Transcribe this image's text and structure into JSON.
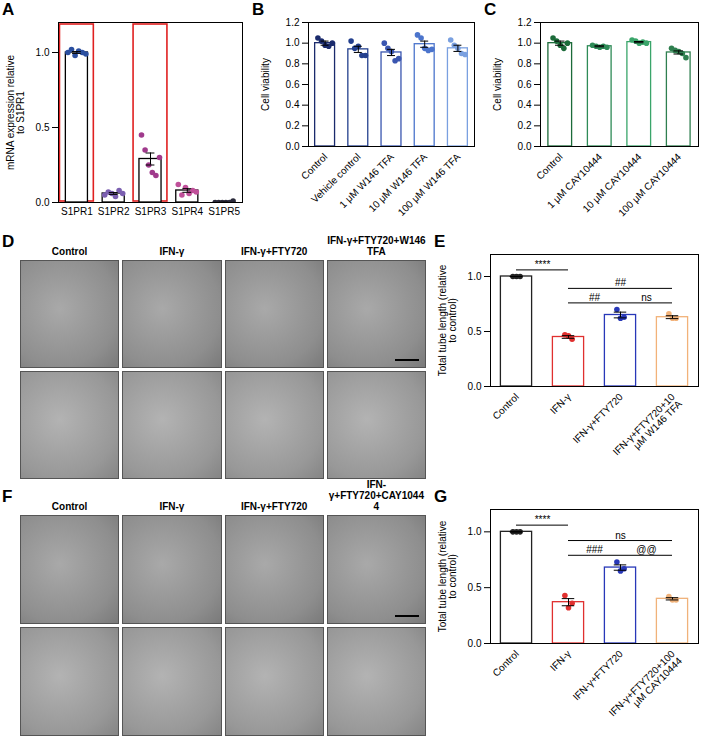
{
  "chart_data": [
    {
      "panel": "A",
      "type": "bar",
      "ylabel": "mRNA expression relative to S1PR1",
      "categories": [
        "S1PR1",
        "S1PR2",
        "S1PR3",
        "S1PR4",
        "S1PR5"
      ],
      "values": [
        1.0,
        0.06,
        0.29,
        0.08,
        0.0
      ],
      "errors": [
        0.006,
        0.006,
        0.04,
        0.012,
        0.002
      ],
      "points": [
        [
          1.0,
          1.02,
          0.98,
          1.01,
          1.0,
          0.99
        ],
        [
          0.05,
          0.07,
          0.06,
          0.04,
          0.08,
          0.06
        ],
        [
          0.45,
          0.35,
          0.25,
          0.2,
          0.18,
          0.3
        ],
        [
          0.12,
          0.05,
          0.1,
          0.06,
          0.08,
          0.07
        ],
        [
          0,
          0,
          0,
          0,
          0,
          0.01
        ]
      ],
      "color": "#000000",
      "colors": [
        "#2b4fa0",
        "#7b5fb0",
        "#a03a8c",
        "#c0509a",
        "#2a2a3a"
      ],
      "highlight": [
        "S1PR1",
        "S1PR3"
      ],
      "ylim": [
        0,
        1.2
      ],
      "yticks": [
        {
          "value": 0,
          "label": "0.0"
        },
        0.5,
        {
          "value": 1,
          "label": "1.0"
        }
      ]
    },
    {
      "panel": "B",
      "type": "bar",
      "ylabel": "Cell viability",
      "categories": [
        "Control",
        "Vehicle control",
        "1 μM W146 TFA",
        "10 μM W146 TFA",
        "100 μM W146 TFA"
      ],
      "values": [
        1.0,
        0.94,
        0.91,
        0.99,
        0.95
      ],
      "errors": [
        0.02,
        0.03,
        0.03,
        0.03,
        0.03
      ],
      "points": [
        [
          1.05,
          1.02,
          0.98,
          0.97,
          1.0
        ],
        [
          1.02,
          0.95,
          0.97,
          0.88,
          0.88
        ],
        [
          1.0,
          0.95,
          0.92,
          0.83,
          0.85
        ],
        [
          1.08,
          1.05,
          0.95,
          0.93,
          0.94
        ],
        [
          1.03,
          0.98,
          0.95,
          0.9,
          0.89
        ]
      ],
      "colors": [
        "#1a2a6c",
        "#24408e",
        "#3a56b0",
        "#4b74cc",
        "#7aa0e0"
      ],
      "ylim": [
        0,
        1.2
      ],
      "yticks": [
        {
          "value": 0,
          "label": "0.0"
        },
        0.2,
        0.4,
        0.6,
        0.8,
        {
          "value": 1,
          "label": "1.0"
        },
        1.2
      ]
    },
    {
      "panel": "C",
      "type": "bar",
      "ylabel": "Cell viability",
      "categories": [
        "Control",
        "1 μM CAY10444",
        "10 μM CAY10444",
        "100 μM CAY10444"
      ],
      "values": [
        1.0,
        0.97,
        1.01,
        0.91
      ],
      "errors": [
        0.02,
        0.005,
        0.006,
        0.015
      ],
      "points": [
        [
          1.05,
          1.02,
          0.98,
          0.95,
          1.0
        ],
        [
          0.98,
          0.97,
          0.96,
          0.97,
          0.96
        ],
        [
          1.03,
          1.02,
          1.0,
          1.01,
          1.0
        ],
        [
          0.95,
          0.93,
          0.92,
          0.9,
          0.86
        ]
      ],
      "colors": [
        "#1c6b3a",
        "#2e8b57",
        "#3aa56a",
        "#2f7f4f"
      ],
      "ylim": [
        0,
        1.2
      ],
      "yticks": [
        {
          "value": 0,
          "label": "0.0"
        },
        0.2,
        0.4,
        0.6,
        0.8,
        {
          "value": 1,
          "label": "1.0"
        },
        1.2
      ]
    },
    {
      "panel": "D",
      "type": "image_grid",
      "columns": [
        "Control",
        "IFN-γ",
        "IFN-γ+FTY720",
        "IFN-γ+FTY720+W146 TFA"
      ],
      "rows": 2
    },
    {
      "panel": "E",
      "type": "bar",
      "ylabel": "Total tube length (relative to control)",
      "categories": [
        "Control",
        "IFN-γ",
        "IFN-γ+FTY720",
        "IFN-γ+FTY720+10 μM W146 TFA"
      ],
      "values": [
        1.0,
        0.45,
        0.65,
        0.63
      ],
      "errors": [
        0.0,
        0.012,
        0.026,
        0.013
      ],
      "points": [
        [
          1.0,
          1.0,
          1.0
        ],
        [
          0.47,
          0.46,
          0.43
        ],
        [
          0.7,
          0.62,
          0.63
        ],
        [
          0.66,
          0.62,
          0.62
        ]
      ],
      "colors": [
        "#222222",
        "#e0302f",
        "#2838b8",
        "#f2b279"
      ],
      "comparisons": [
        {
          "from": "Control",
          "to": "IFN-γ",
          "label": "****"
        },
        {
          "from": "IFN-γ",
          "to": "IFN-γ+FTY720",
          "label": "##"
        },
        {
          "from": "IFN-γ+FTY720",
          "to": "IFN-γ+FTY720+10 μM W146 TFA",
          "label": "ns"
        },
        {
          "from": "IFN-γ",
          "to": "IFN-γ+FTY720+10 μM W146 TFA",
          "label": "##"
        }
      ],
      "ylim": [
        0,
        1.2
      ],
      "yticks": [
        {
          "value": 0,
          "label": "0.0"
        },
        0.5,
        {
          "value": 1,
          "label": "1.0"
        }
      ]
    },
    {
      "panel": "F",
      "type": "image_grid",
      "columns": [
        "Control",
        "IFN-γ",
        "IFN-γ+FTY720",
        "IFN-γ+FTY720+CAY10444"
      ],
      "rows": 2
    },
    {
      "panel": "G",
      "type": "bar",
      "ylabel": "Total tube length (relative to control)",
      "categories": [
        "Control",
        "IFN-γ",
        "IFN-γ+FTY720",
        "IFN-γ+FTY720+100 μM CAY10444"
      ],
      "values": [
        1.0,
        0.37,
        0.68,
        0.4
      ],
      "errors": [
        0.0,
        0.032,
        0.024,
        0.01
      ],
      "points": [
        [
          1.0,
          1.0,
          1.0
        ],
        [
          0.43,
          0.32,
          0.36
        ],
        [
          0.73,
          0.65,
          0.67
        ],
        [
          0.42,
          0.39,
          0.39
        ]
      ],
      "colors": [
        "#222222",
        "#e0302f",
        "#2838b8",
        "#f0b27a"
      ],
      "comparisons": [
        {
          "from": "Control",
          "to": "IFN-γ",
          "label": "****"
        },
        {
          "from": "IFN-γ",
          "to": "IFN-γ+FTY720",
          "label": "###"
        },
        {
          "from": "IFN-γ+FTY720",
          "to": "IFN-γ+FTY720+100 μM CAY10444",
          "label": "@@"
        },
        {
          "from": "IFN-γ",
          "to": "IFN-γ+FTY720+100 μM CAY10444",
          "label": "ns"
        }
      ],
      "ylim": [
        0,
        1.2
      ],
      "yticks": [
        {
          "value": 0,
          "label": "0.0"
        },
        0.5,
        {
          "value": 1,
          "label": "1.0"
        }
      ]
    }
  ]
}
